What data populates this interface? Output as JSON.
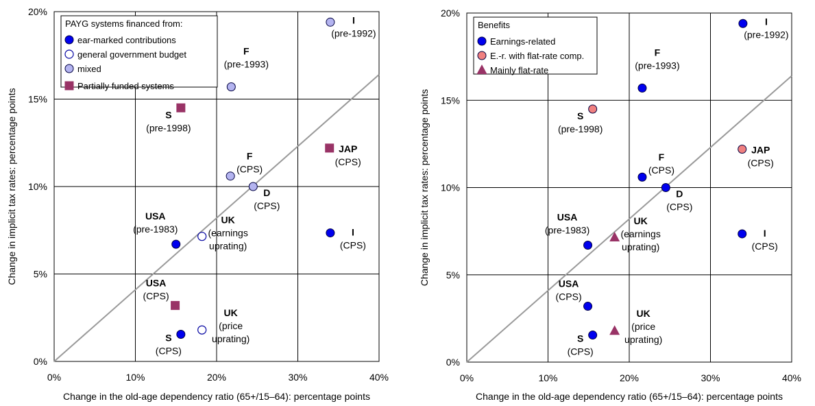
{
  "chart_data": [
    {
      "type": "scatter",
      "xlabel": "Change in the old-age dependency ratio (65+/15–64): percentage points",
      "ylabel": "Change in implicit tax rates: percentage points",
      "xlim": [
        0,
        40
      ],
      "ylim": [
        0,
        20
      ],
      "x_ticks": [
        "0%",
        "10%",
        "20%",
        "30%",
        "40%"
      ],
      "y_ticks": [
        "0%",
        "5%",
        "10%",
        "15%",
        "20%"
      ],
      "grid": true,
      "diagonal_line": {
        "from": [
          0,
          0
        ],
        "to": [
          40,
          16.4
        ]
      },
      "legend": {
        "placement": "top-left",
        "title": "PAYG systems financed from:",
        "entries": [
          {
            "label": "ear-marked contributions",
            "marker": "circle",
            "color": "#0000ee"
          },
          {
            "label": "general government budget",
            "marker": "circle-open",
            "color": "#ffffff"
          },
          {
            "label": "mixed",
            "marker": "circle",
            "color": "#b4b4f0"
          },
          {
            "label": "Partially funded systems",
            "marker": "square",
            "color": "#993366"
          }
        ]
      },
      "points": [
        {
          "x": 34,
          "y": 19.4,
          "category": "mixed",
          "label_bold": "I",
          "label": "(pre-1992)"
        },
        {
          "x": 21.8,
          "y": 15.7,
          "category": "mixed",
          "label_bold": "F",
          "label": "(pre-1993)"
        },
        {
          "x": 15.6,
          "y": 14.5,
          "category": "partially-funded",
          "label_bold": "S",
          "label": "(pre-1998)"
        },
        {
          "x": 33.9,
          "y": 12.2,
          "category": "partially-funded",
          "label_bold": "JAP",
          "label": "(CPS)"
        },
        {
          "x": 21.7,
          "y": 10.6,
          "category": "mixed",
          "label_bold": "F",
          "label": "(CPS)"
        },
        {
          "x": 24.5,
          "y": 10.0,
          "category": "mixed",
          "label_bold": "D",
          "label": "(CPS)"
        },
        {
          "x": 15.0,
          "y": 6.7,
          "category": "ear-marked",
          "label_bold": "USA",
          "label": "(pre-1983)"
        },
        {
          "x": 18.2,
          "y": 7.15,
          "category": "general-budget",
          "label_bold": "UK",
          "label": "(earnings uprating)"
        },
        {
          "x": 34.0,
          "y": 7.35,
          "category": "ear-marked",
          "label_bold": "I",
          "label": "(CPS)"
        },
        {
          "x": 14.9,
          "y": 3.2,
          "category": "partially-funded",
          "label_bold": "USA",
          "label": "(CPS)"
        },
        {
          "x": 15.6,
          "y": 1.55,
          "category": "ear-marked",
          "label_bold": "S",
          "label": "(CPS)"
        },
        {
          "x": 18.2,
          "y": 1.8,
          "category": "general-budget",
          "label_bold": "UK",
          "label": "(price uprating)"
        }
      ]
    },
    {
      "type": "scatter",
      "xlabel": "Change in the old-age dependency ratio (65+/15–64): percentage points",
      "ylabel": "Change in implicit tax rates: percentage points",
      "xlim": [
        0,
        40
      ],
      "ylim": [
        0,
        20
      ],
      "x_ticks": [
        "0%",
        "10%",
        "20%",
        "30%",
        "40%"
      ],
      "y_ticks": [
        "0%",
        "5%",
        "10%",
        "15%",
        "20%"
      ],
      "grid": true,
      "diagonal_line": {
        "from": [
          0,
          0
        ],
        "to": [
          40,
          16.4
        ]
      },
      "legend": {
        "placement": "top-left",
        "title": "Benefits",
        "entries": [
          {
            "label": "Earnings-related",
            "marker": "circle",
            "color": "#0000ee"
          },
          {
            "label": "E.-r. with flat-rate comp.",
            "marker": "circle",
            "color": "#f08080"
          },
          {
            "label": "Mainly flat-rate",
            "marker": "triangle",
            "color": "#993366"
          }
        ]
      },
      "points": [
        {
          "x": 34,
          "y": 19.4,
          "category": "earnings-related",
          "label_bold": "I",
          "label": "(pre-1992)"
        },
        {
          "x": 21.6,
          "y": 15.7,
          "category": "earnings-related",
          "label_bold": "F",
          "label": "(pre-1993)"
        },
        {
          "x": 15.5,
          "y": 14.5,
          "category": "flat-rate-comp",
          "label_bold": "S",
          "label": "(pre-1998)"
        },
        {
          "x": 33.9,
          "y": 12.2,
          "category": "flat-rate-comp",
          "label_bold": "JAP",
          "label": "(CPS)"
        },
        {
          "x": 21.6,
          "y": 10.6,
          "category": "earnings-related",
          "label_bold": "F",
          "label": "(CPS)"
        },
        {
          "x": 24.5,
          "y": 10.0,
          "category": "earnings-related",
          "label_bold": "D",
          "label": "(CPS)"
        },
        {
          "x": 14.9,
          "y": 6.7,
          "category": "earnings-related",
          "label_bold": "USA",
          "label": "(pre-1983)"
        },
        {
          "x": 18.2,
          "y": 7.15,
          "category": "mainly-flat-rate",
          "label_bold": "UK",
          "label": "(earnings uprating)"
        },
        {
          "x": 33.9,
          "y": 7.35,
          "category": "earnings-related",
          "label_bold": "I",
          "label": "(CPS)"
        },
        {
          "x": 14.9,
          "y": 3.2,
          "category": "earnings-related",
          "label_bold": "USA",
          "label": "(CPS)"
        },
        {
          "x": 15.5,
          "y": 1.55,
          "category": "earnings-related",
          "label_bold": "S",
          "label": "(CPS)"
        },
        {
          "x": 18.2,
          "y": 1.8,
          "category": "mainly-flat-rate",
          "label_bold": "UK",
          "label": "(price uprating)"
        }
      ]
    }
  ]
}
